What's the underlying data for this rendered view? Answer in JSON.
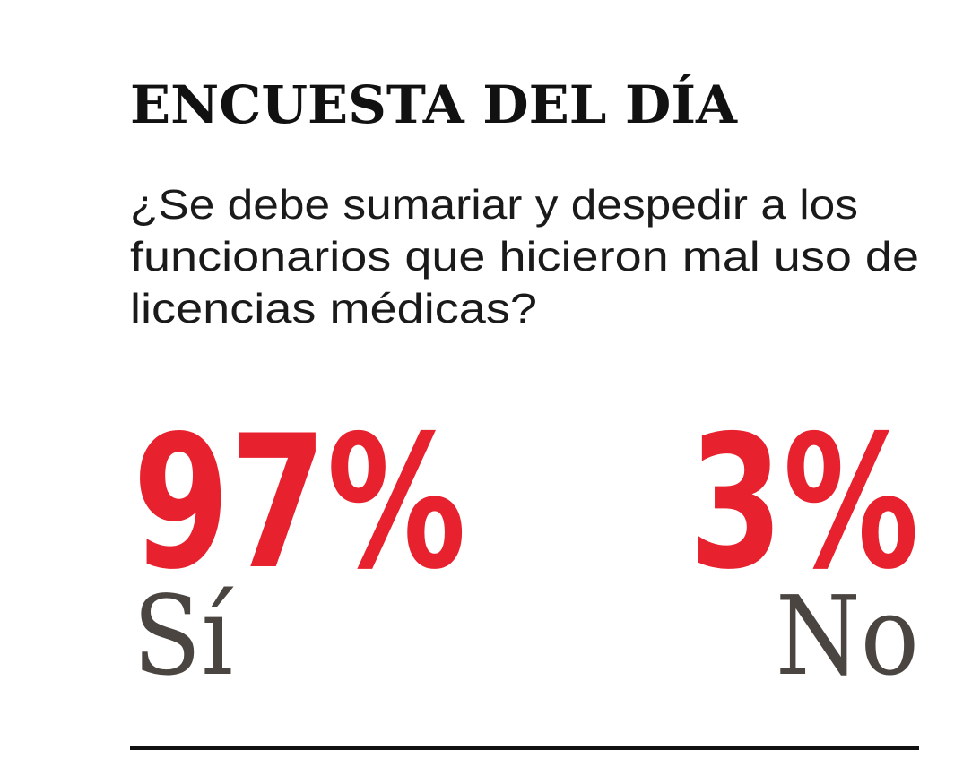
{
  "header": {
    "title": "ENCUESTA DEL DÍA"
  },
  "question": {
    "lines": [
      "¿Se debe sumariar y despedir a los",
      "funcionarios que hicieron mal uso de",
      "licencias médicas?"
    ]
  },
  "results": [
    {
      "percent": "97%",
      "label": "Sí"
    },
    {
      "percent": "3%",
      "label": "No"
    }
  ]
}
